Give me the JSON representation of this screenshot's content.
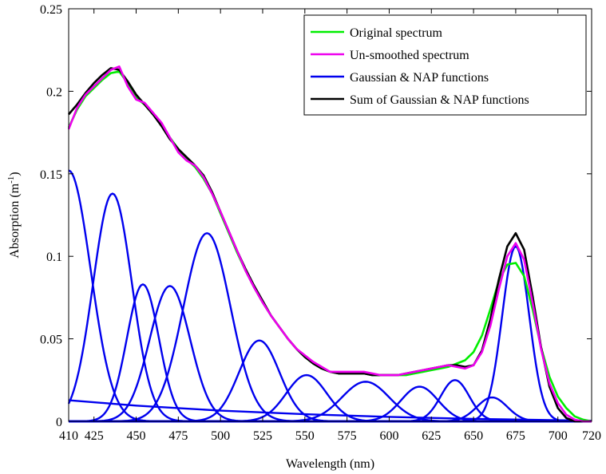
{
  "chart_data": {
    "type": "line",
    "title": "",
    "xlabel": "Wavelength (nm)",
    "ylabel": "Absorption (m",
    "ylabel_sup": "-1",
    "ylabel_close": ")",
    "xlim": [
      410,
      720
    ],
    "ylim": [
      0,
      0.25
    ],
    "xticks": [
      410,
      425,
      450,
      475,
      500,
      525,
      550,
      575,
      600,
      625,
      650,
      675,
      700,
      720
    ],
    "xtick_labels": [
      "410",
      "425",
      "450",
      "475",
      "500",
      "525",
      "550",
      "575",
      "600",
      "625",
      "650",
      "675",
      "700",
      "720"
    ],
    "yticks": [
      0,
      0.05,
      0.1,
      0.15,
      0.2,
      0.25
    ],
    "ytick_labels": [
      "0",
      "0.05",
      "0.1",
      "0.15",
      "0.2",
      "0.25"
    ],
    "grid": false,
    "legend_position": "top-right",
    "legend": [
      {
        "label": "Original spectrum",
        "color": "#00ee00"
      },
      {
        "label": "Un-smoothed spectrum",
        "color": "#ee00ee"
      },
      {
        "label": "Gaussian & NAP functions",
        "color": "#0000ee"
      },
      {
        "label": "Sum of Gaussian & NAP functions",
        "color": "#000000"
      }
    ],
    "series": [
      {
        "name": "Original spectrum",
        "color": "#00ee00",
        "x": [
          410,
          415,
          420,
          425,
          430,
          435,
          440,
          445,
          450,
          455,
          460,
          465,
          470,
          475,
          480,
          485,
          490,
          495,
          500,
          505,
          510,
          515,
          520,
          525,
          530,
          535,
          540,
          545,
          550,
          555,
          560,
          565,
          570,
          575,
          580,
          585,
          590,
          595,
          600,
          605,
          610,
          615,
          620,
          625,
          630,
          635,
          640,
          645,
          650,
          655,
          660,
          665,
          670,
          675,
          680,
          685,
          690,
          695,
          700,
          705,
          710,
          715,
          720
        ],
        "y": [
          0.178,
          0.189,
          0.197,
          0.202,
          0.207,
          0.211,
          0.212,
          0.205,
          0.196,
          0.192,
          0.186,
          0.18,
          0.172,
          0.165,
          0.159,
          0.154,
          0.147,
          0.138,
          0.126,
          0.114,
          0.102,
          0.091,
          0.081,
          0.072,
          0.064,
          0.057,
          0.05,
          0.044,
          0.039,
          0.035,
          0.032,
          0.03,
          0.029,
          0.029,
          0.029,
          0.029,
          0.028,
          0.028,
          0.028,
          0.028,
          0.028,
          0.029,
          0.03,
          0.031,
          0.032,
          0.033,
          0.035,
          0.037,
          0.042,
          0.052,
          0.068,
          0.085,
          0.095,
          0.096,
          0.088,
          0.068,
          0.045,
          0.027,
          0.015,
          0.008,
          0.003,
          0.001,
          0.0
        ]
      },
      {
        "name": "Un-smoothed spectrum",
        "color": "#ee00ee",
        "x": [
          410,
          415,
          420,
          425,
          430,
          435,
          440,
          445,
          450,
          455,
          460,
          465,
          470,
          475,
          480,
          485,
          490,
          495,
          500,
          505,
          510,
          515,
          520,
          525,
          530,
          535,
          540,
          545,
          550,
          555,
          560,
          565,
          570,
          575,
          580,
          585,
          590,
          595,
          600,
          605,
          610,
          615,
          620,
          625,
          630,
          635,
          640,
          645,
          650,
          655,
          660,
          665,
          670,
          675,
          680,
          685,
          690,
          695,
          700,
          705,
          710,
          715,
          720
        ],
        "y": [
          0.177,
          0.19,
          0.198,
          0.203,
          0.208,
          0.213,
          0.215,
          0.203,
          0.195,
          0.193,
          0.187,
          0.181,
          0.172,
          0.163,
          0.158,
          0.155,
          0.148,
          0.138,
          0.127,
          0.115,
          0.103,
          0.091,
          0.081,
          0.072,
          0.064,
          0.057,
          0.05,
          0.044,
          0.04,
          0.036,
          0.033,
          0.03,
          0.03,
          0.03,
          0.03,
          0.03,
          0.029,
          0.028,
          0.028,
          0.028,
          0.029,
          0.03,
          0.031,
          0.032,
          0.033,
          0.034,
          0.033,
          0.032,
          0.034,
          0.042,
          0.058,
          0.08,
          0.1,
          0.108,
          0.098,
          0.072,
          0.044,
          0.023,
          0.011,
          0.004,
          0.001,
          0.0,
          0.0
        ]
      },
      {
        "name": "Sum of Gaussian & NAP functions",
        "color": "#000000",
        "x": [
          410,
          415,
          420,
          425,
          430,
          435,
          440,
          445,
          450,
          455,
          460,
          465,
          470,
          475,
          480,
          485,
          490,
          495,
          500,
          505,
          510,
          515,
          520,
          525,
          530,
          535,
          540,
          545,
          550,
          555,
          560,
          565,
          570,
          575,
          580,
          585,
          590,
          595,
          600,
          605,
          610,
          615,
          620,
          625,
          630,
          635,
          640,
          645,
          650,
          655,
          660,
          665,
          670,
          675,
          680,
          685,
          690,
          695,
          700,
          705,
          710,
          715,
          720
        ],
        "y": [
          0.186,
          0.192,
          0.199,
          0.205,
          0.21,
          0.214,
          0.213,
          0.206,
          0.198,
          0.192,
          0.186,
          0.179,
          0.171,
          0.165,
          0.16,
          0.155,
          0.149,
          0.139,
          0.127,
          0.115,
          0.103,
          0.092,
          0.082,
          0.073,
          0.064,
          0.057,
          0.05,
          0.044,
          0.039,
          0.035,
          0.032,
          0.03,
          0.029,
          0.029,
          0.029,
          0.029,
          0.028,
          0.028,
          0.028,
          0.028,
          0.029,
          0.03,
          0.031,
          0.032,
          0.033,
          0.034,
          0.034,
          0.033,
          0.034,
          0.043,
          0.062,
          0.086,
          0.106,
          0.114,
          0.104,
          0.076,
          0.045,
          0.021,
          0.008,
          0.002,
          0.0,
          0.0,
          0.0
        ]
      },
      {
        "name": "Gaussian & NAP functions",
        "color": "#0000ee",
        "components": [
          {
            "kind": "gaussian",
            "center": 410,
            "amplitude": 0.152,
            "sigma": 13
          },
          {
            "kind": "gaussian",
            "center": 436,
            "amplitude": 0.138,
            "sigma": 11.5
          },
          {
            "kind": "gaussian",
            "center": 454,
            "amplitude": 0.083,
            "sigma": 9.5
          },
          {
            "kind": "gaussian",
            "center": 470,
            "amplitude": 0.082,
            "sigma": 12
          },
          {
            "kind": "gaussian",
            "center": 492,
            "amplitude": 0.114,
            "sigma": 14
          },
          {
            "kind": "gaussian",
            "center": 523,
            "amplitude": 0.049,
            "sigma": 12
          },
          {
            "kind": "gaussian",
            "center": 551,
            "amplitude": 0.028,
            "sigma": 12
          },
          {
            "kind": "gaussian",
            "center": 586,
            "amplitude": 0.024,
            "sigma": 14
          },
          {
            "kind": "gaussian",
            "center": 618,
            "amplitude": 0.021,
            "sigma": 11
          },
          {
            "kind": "gaussian",
            "center": 639,
            "amplitude": 0.025,
            "sigma": 8.5
          },
          {
            "kind": "gaussian",
            "center": 661,
            "amplitude": 0.0145,
            "sigma": 9
          },
          {
            "kind": "gaussian",
            "center": 675,
            "amplitude": 0.106,
            "sigma": 8
          },
          {
            "kind": "nap",
            "x": [
              410,
              450,
              500,
              550,
              600,
              650,
              700,
              720
            ],
            "y": [
              0.0128,
              0.0095,
              0.0065,
              0.0043,
              0.0027,
              0.0015,
              0.0007,
              0.0004
            ]
          }
        ]
      }
    ]
  }
}
